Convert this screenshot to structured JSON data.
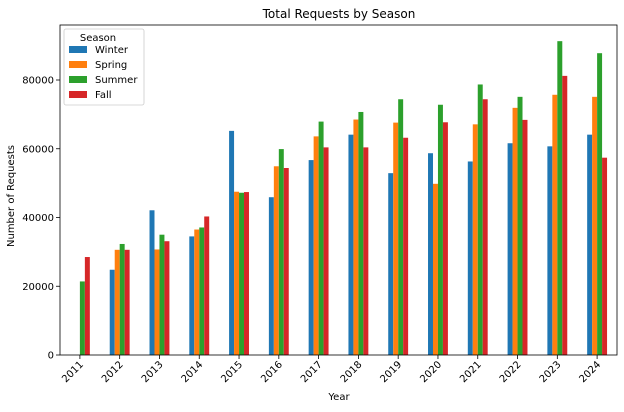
{
  "chart_data": {
    "type": "bar",
    "title": "Total Requests by Season",
    "xlabel": "Year",
    "ylabel": "Number of Requests",
    "categories": [
      "2011",
      "2012",
      "2013",
      "2014",
      "2015",
      "2016",
      "2017",
      "2018",
      "2019",
      "2020",
      "2021",
      "2022",
      "2023",
      "2024"
    ],
    "series": [
      {
        "name": "Winter",
        "color": "#1f77b4",
        "values": [
          0,
          24800,
          42100,
          34500,
          65200,
          45900,
          56700,
          64100,
          52900,
          58700,
          56300,
          61600,
          60700,
          64100
        ]
      },
      {
        "name": "Spring",
        "color": "#ff7f0e",
        "values": [
          0,
          30600,
          30700,
          36500,
          47500,
          54900,
          63600,
          68500,
          67600,
          49800,
          67100,
          71900,
          75700,
          75100
        ]
      },
      {
        "name": "Summer",
        "color": "#2ca02c",
        "values": [
          21400,
          32300,
          35000,
          37100,
          47200,
          59900,
          67900,
          70700,
          74400,
          72800,
          78700,
          75100,
          91300,
          87800
        ]
      },
      {
        "name": "Fall",
        "color": "#d62728",
        "values": [
          28500,
          30600,
          33100,
          40300,
          47400,
          54400,
          60400,
          60400,
          63200,
          67700,
          74400,
          68400,
          81200,
          57400
        ]
      }
    ],
    "ylim": [
      0,
      96000
    ],
    "yticks": [
      0,
      20000,
      40000,
      60000,
      80000
    ],
    "grid": false,
    "legend": {
      "title": "Season",
      "position": "upper-left"
    }
  }
}
